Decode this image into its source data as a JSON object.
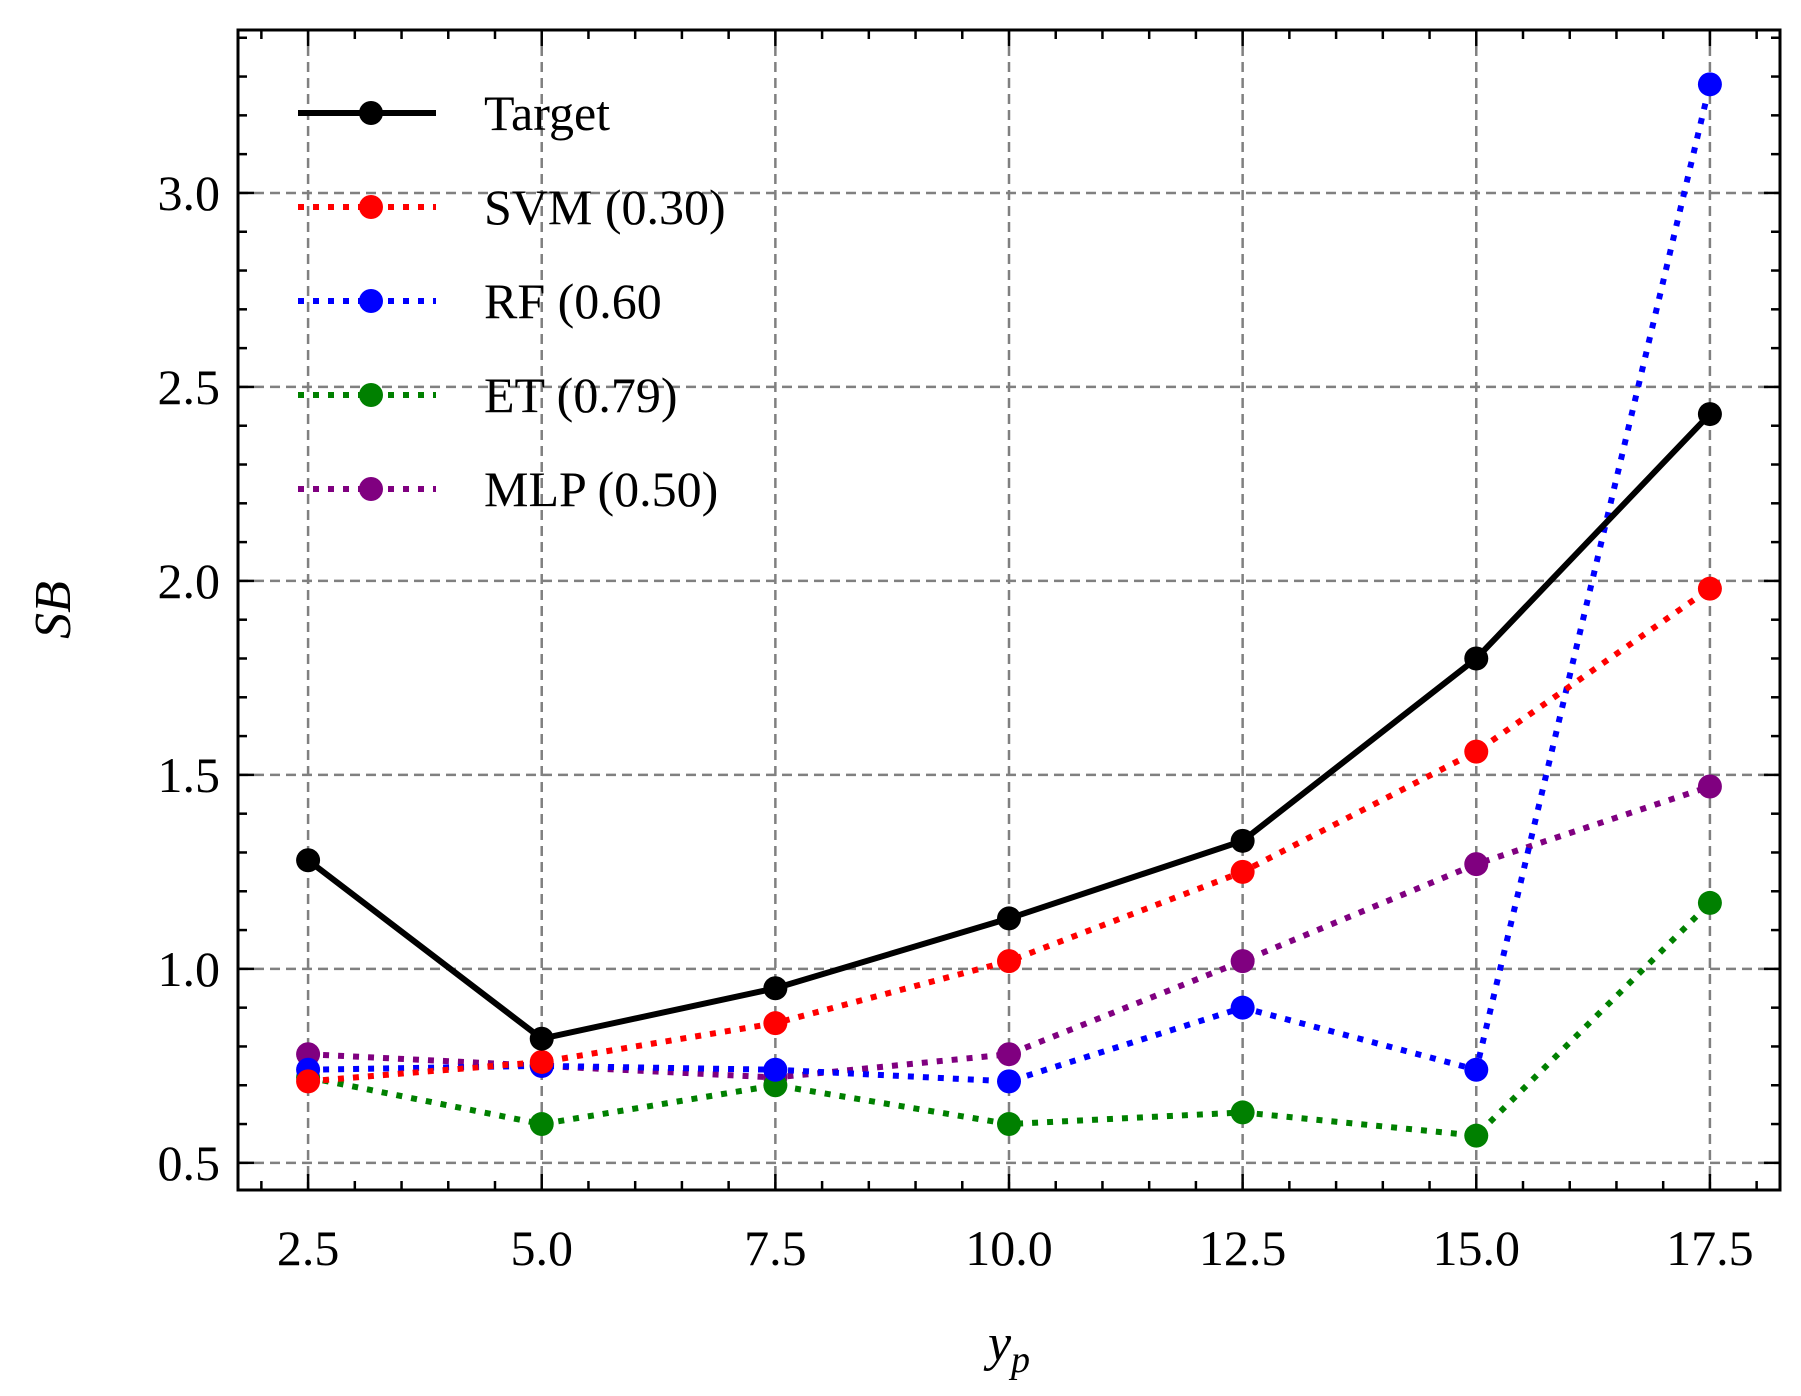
{
  "chart_data": {
    "type": "line",
    "xlabel": "y",
    "xlabel_sub": "p",
    "ylabel": "SB",
    "xlim": [
      1.75,
      18.25
    ],
    "ylim": [
      0.43,
      3.42
    ],
    "x_ticks": [
      2.5,
      5.0,
      7.5,
      10.0,
      12.5,
      15.0,
      17.5
    ],
    "x_tick_labels": [
      "2.5",
      "5.0",
      "7.5",
      "10.0",
      "12.5",
      "15.0",
      "17.5"
    ],
    "y_ticks": [
      0.5,
      1.0,
      1.5,
      2.0,
      2.5,
      3.0
    ],
    "y_tick_labels": [
      "0.5",
      "1.0",
      "1.5",
      "2.0",
      "2.5",
      "3.0"
    ],
    "x_minor_step": 0.5,
    "y_minor_step": 0.1,
    "grid": true,
    "legend_position": "top-left",
    "x": [
      2.5,
      5.0,
      7.5,
      10.0,
      12.5,
      15.0,
      17.5
    ],
    "series": [
      {
        "name": "Target",
        "color": "#000000",
        "style": "solid",
        "values": [
          1.28,
          0.82,
          0.95,
          1.13,
          1.33,
          1.8,
          2.43
        ]
      },
      {
        "name": "SVM (0.30)",
        "color": "#ff0000",
        "style": "dotted",
        "values": [
          0.71,
          0.76,
          0.86,
          1.02,
          1.25,
          1.56,
          1.98
        ]
      },
      {
        "name": "RF (0.60",
        "color": "#0000ff",
        "style": "dotted",
        "values": [
          0.74,
          0.75,
          0.74,
          0.71,
          0.9,
          0.74,
          3.28
        ]
      },
      {
        "name": "ET (0.79)",
        "color": "#008000",
        "style": "dotted",
        "values": [
          0.72,
          0.6,
          0.7,
          0.6,
          0.63,
          0.57,
          1.17
        ]
      },
      {
        "name": "MLP (0.50)",
        "color": "#800080",
        "style": "dotted",
        "values": [
          0.78,
          0.75,
          0.72,
          0.78,
          1.02,
          1.27,
          1.47
        ]
      }
    ]
  }
}
